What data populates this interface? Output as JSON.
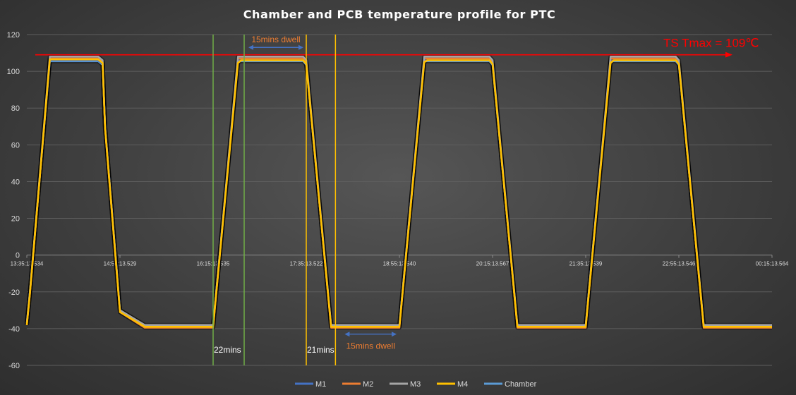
{
  "chart_data": {
    "type": "line",
    "title": "Chamber and PCB temperature profile for PTC",
    "xlabel": "",
    "ylabel": "",
    "ylim": [
      -60,
      120
    ],
    "yticks": [
      -60,
      -40,
      -20,
      0,
      20,
      40,
      60,
      80,
      100,
      120
    ],
    "xlim": [
      0,
      12
    ],
    "x_tick_labels": [
      "13:35:13.534",
      "14:55:13.529",
      "16:15:13.535",
      "17:35:13.522",
      "18:55:13.540",
      "20:15:13.567",
      "21:35:13.539",
      "22:55:13.546",
      "00:15:13.564"
    ],
    "x_ticks": [
      0,
      1.5,
      3,
      4.5,
      6,
      7.5,
      9,
      10.5,
      12
    ],
    "grid": true,
    "legend_position": "bottom",
    "series": [
      {
        "name": "M1",
        "color": "#4472c4",
        "x": [
          0,
          0.05,
          0.37,
          1.15,
          1.22,
          1.26,
          1.5,
          1.9,
          3.0,
          3.05,
          3.4,
          3.45,
          4.45,
          4.5,
          4.9,
          4.95,
          6.0,
          6.05,
          6.4,
          6.45,
          7.45,
          7.5,
          7.9,
          7.95,
          9.0,
          9.05,
          9.4,
          9.45,
          10.45,
          10.5,
          10.9,
          10.95,
          12.0
        ],
        "y": [
          -37,
          -20,
          106,
          106,
          104,
          70,
          -30,
          -38.5,
          -38.5,
          -20,
          106,
          106,
          106,
          104,
          -38.5,
          -38.5,
          -38.5,
          -20,
          106,
          106,
          106,
          104,
          -38.5,
          -38.5,
          -38.5,
          -20,
          106,
          106,
          106,
          104,
          -38.5,
          -38.5,
          -38.5
        ]
      },
      {
        "name": "M2",
        "color": "#ed7d31",
        "x": [
          0,
          0.05,
          0.37,
          1.15,
          1.22,
          1.26,
          1.5,
          1.9,
          3.0,
          3.05,
          3.4,
          3.45,
          4.45,
          4.5,
          4.9,
          4.95,
          6.0,
          6.05,
          6.4,
          6.45,
          7.45,
          7.5,
          7.9,
          7.95,
          9.0,
          9.05,
          9.4,
          9.45,
          10.45,
          10.5,
          10.9,
          10.95,
          12.0
        ],
        "y": [
          -38,
          -21,
          107,
          107,
          105,
          69,
          -31,
          -39.5,
          -39.5,
          -21,
          107,
          107,
          107,
          105,
          -39.5,
          -39.5,
          -39.5,
          -21,
          107,
          107,
          107,
          105,
          -39.5,
          -39.5,
          -39.5,
          -21,
          107,
          107,
          107,
          105,
          -39.5,
          -39.5,
          -39.5
        ]
      },
      {
        "name": "M3",
        "color": "#a5a5a5",
        "x": [
          0,
          0.05,
          0.37,
          1.15,
          1.22,
          1.26,
          1.5,
          1.9,
          3.0,
          3.05,
          3.4,
          3.45,
          4.45,
          4.5,
          4.9,
          4.95,
          6.0,
          6.05,
          6.4,
          6.45,
          7.45,
          7.5,
          7.9,
          7.95,
          9.0,
          9.05,
          9.4,
          9.45,
          10.45,
          10.5,
          10.9,
          10.95,
          12.0
        ],
        "y": [
          -37,
          -20,
          108,
          108,
          106,
          70,
          -30,
          -38,
          -38,
          -20,
          108,
          108,
          108,
          106,
          -38,
          -38,
          -38,
          -20,
          108,
          108,
          108,
          106,
          -38,
          -38,
          -38,
          -20,
          108,
          108,
          108,
          106,
          -38,
          -38,
          -38
        ]
      },
      {
        "name": "M4",
        "color": "#ffc000",
        "x": [
          0,
          0.05,
          0.37,
          1.15,
          1.22,
          1.26,
          1.5,
          1.9,
          3.0,
          3.05,
          3.4,
          3.45,
          4.45,
          4.5,
          4.9,
          4.95,
          6.0,
          6.05,
          6.4,
          6.45,
          7.45,
          7.5,
          7.9,
          7.95,
          9.0,
          9.05,
          9.4,
          9.45,
          10.45,
          10.5,
          10.9,
          10.95,
          12.0
        ],
        "y": [
          -38,
          -21,
          106.5,
          106.5,
          104.5,
          69,
          -31,
          -39,
          -39,
          -21,
          104.5,
          106,
          106,
          104,
          -39,
          -39,
          -39,
          -21,
          105,
          106,
          106,
          104,
          -39,
          -39,
          -39,
          -21,
          104.5,
          106,
          106,
          104,
          -39,
          -39,
          -39
        ]
      },
      {
        "name": "Chamber",
        "color": "#5b9bd5",
        "x": [
          0,
          0.05,
          0.37,
          1.15,
          1.22,
          1.26,
          1.5,
          1.9,
          3.0,
          3.05,
          3.4,
          3.45,
          4.45,
          4.5,
          4.9,
          4.95,
          6.0,
          6.05,
          6.4,
          6.45,
          7.45,
          7.5,
          7.9,
          7.95,
          9.0,
          9.05,
          9.4,
          9.45,
          10.45,
          10.5,
          10.9,
          10.95,
          12.0
        ],
        "y": [
          -38,
          -20,
          105.5,
          105.5,
          103.5,
          70,
          -30,
          -38.5,
          -38.5,
          -20,
          105.5,
          105.5,
          105.5,
          103.5,
          -38.5,
          -38.5,
          -38.5,
          -20,
          105.5,
          105.5,
          105.5,
          103.5,
          -38.5,
          -38.5,
          -38.5,
          -20,
          105.5,
          105.5,
          105.5,
          103.5,
          -38.5,
          -38.5,
          -38.5
        ]
      }
    ],
    "reference_lines": [
      {
        "kind": "horizontal",
        "y": 109,
        "color": "#ff0000",
        "label": "TS Tmax = 109℃",
        "label_color": "#ff0000"
      },
      {
        "kind": "vertical",
        "x": 3.0,
        "color": "#70ad47"
      },
      {
        "kind": "vertical",
        "x": 3.5,
        "color": "#70ad47"
      },
      {
        "kind": "vertical",
        "x": 4.5,
        "color": "#ffc000"
      },
      {
        "kind": "vertical",
        "x": 4.97,
        "color": "#ffc000"
      }
    ],
    "annotations": [
      {
        "text": "15mins dwell",
        "color": "#ed7d31",
        "kind": "dwell-top",
        "x_from": 3.5,
        "x_to": 4.5,
        "y": 113
      },
      {
        "text": "15mins dwell",
        "color": "#ed7d31",
        "kind": "dwell-bottom",
        "x_from": 5.05,
        "x_to": 6.0,
        "y": -43
      },
      {
        "text": "22mins",
        "color": "#ffffff",
        "kind": "gap-label",
        "x": 3.0,
        "y": -55
      },
      {
        "text": "21mins",
        "color": "#ffffff",
        "kind": "gap-label",
        "x": 4.5,
        "y": -55
      }
    ]
  }
}
